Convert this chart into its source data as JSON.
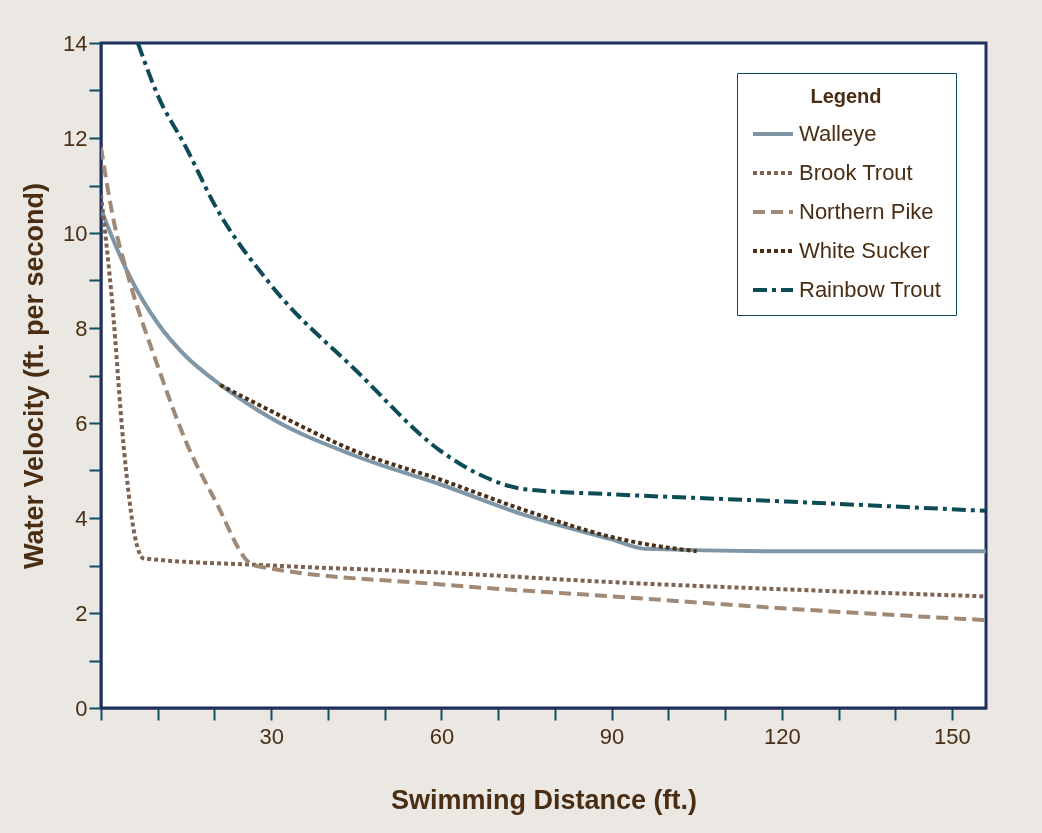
{
  "chart_data": {
    "type": "line",
    "xlabel": "Swimming Distance (ft.)",
    "ylabel": "Water Velocity (ft. per second)",
    "legend_title": "Legend",
    "legend": "top right",
    "grid": false,
    "xlim": [
      0,
      156
    ],
    "ylim": [
      0,
      14
    ],
    "xticks": [
      {
        "value": 0,
        "label": null
      },
      {
        "value": 10,
        "label": null
      },
      {
        "value": 20,
        "label": null
      },
      30,
      {
        "value": 40,
        "label": null
      },
      {
        "value": 50,
        "label": null
      },
      60,
      {
        "value": 70,
        "label": null
      },
      {
        "value": 80,
        "label": null
      },
      90,
      {
        "value": 100,
        "label": null
      },
      {
        "value": 110,
        "label": null
      },
      120,
      {
        "value": 130,
        "label": null
      },
      {
        "value": 140,
        "label": null
      },
      150
    ],
    "yticks": [
      0,
      {
        "value": 1,
        "label": null
      },
      2,
      {
        "value": 3,
        "label": null
      },
      4,
      {
        "value": 5,
        "label": null
      },
      6,
      {
        "value": 7,
        "label": null
      },
      8,
      {
        "value": 9,
        "label": null
      },
      10,
      {
        "value": 11,
        "label": null
      },
      12,
      {
        "value": 13,
        "label": null
      },
      14
    ],
    "series": [
      {
        "name": "Walleye",
        "color": "#7f96a6",
        "line_style": "solid",
        "x": [
          0,
          2,
          5,
          10,
          15,
          20,
          30,
          45,
          60,
          75,
          90,
          96,
          120,
          156
        ],
        "values": [
          10.5,
          9.9,
          9.1,
          8.1,
          7.4,
          6.9,
          6.1,
          5.3,
          4.7,
          4.05,
          3.55,
          3.35,
          3.3,
          3.3
        ]
      },
      {
        "name": "Brook Trout",
        "color": "#7e6450",
        "line_style": "dotted",
        "x": [
          0,
          2,
          4,
          6,
          7.5,
          30,
          60,
          90,
          120,
          156
        ],
        "values": [
          10.8,
          8.5,
          5.5,
          3.6,
          3.15,
          3.0,
          2.85,
          2.65,
          2.5,
          2.35
        ]
      },
      {
        "name": "Northern Pike",
        "color": "#a08a76",
        "line_style": "dashed",
        "x": [
          0,
          2,
          5,
          10,
          15,
          20,
          27,
          60,
          90,
          120,
          156
        ],
        "values": [
          11.8,
          10.4,
          9.0,
          7.2,
          5.6,
          4.4,
          3.0,
          2.6,
          2.35,
          2.1,
          1.85
        ]
      },
      {
        "name": "White Sucker",
        "color": "#4a3018",
        "line_style": "dotted",
        "x": [
          21,
          30,
          45,
          60,
          75,
          90,
          96,
          105
        ],
        "values": [
          6.8,
          6.25,
          5.4,
          4.8,
          4.15,
          3.6,
          3.45,
          3.3
        ]
      },
      {
        "name": "Rainbow Trout",
        "color": "#0d4c57",
        "line_style": "dashdot",
        "x": [
          6.5,
          10,
          15,
          20,
          30,
          45,
          60,
          67,
          75,
          90,
          120,
          156
        ],
        "values": [
          14,
          12.9,
          11.8,
          10.6,
          8.9,
          7.1,
          5.4,
          4.9,
          4.6,
          4.5,
          4.35,
          4.15
        ]
      }
    ]
  }
}
